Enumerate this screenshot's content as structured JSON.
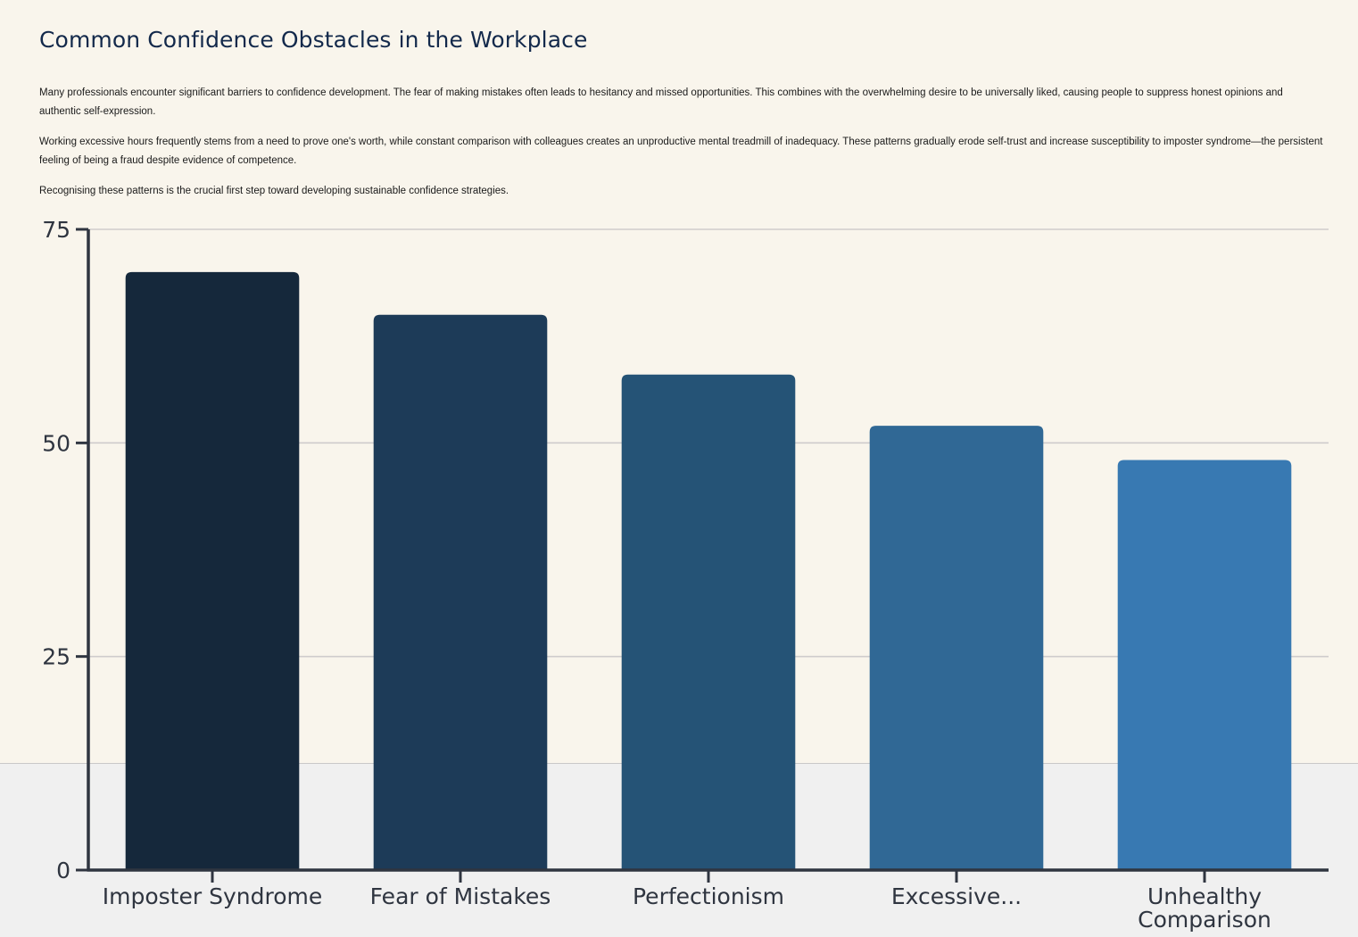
{
  "page": {
    "title": "Common Confidence Obstacles in the Workplace",
    "paragraphs": [
      "Many professionals encounter significant barriers to confidence development. The fear of making mistakes often leads to hesitancy and missed opportunities. This combines with the overwhelming desire to be universally liked, causing people to suppress honest opinions and authentic self-expression.",
      "Working excessive hours frequently stems from a need to prove one's worth, while constant comparison with colleagues creates an unproductive mental treadmill of inadequacy. These patterns gradually erode self-trust and increase susceptibility to imposter syndrome—the persistent feeling of being a fraud despite evidence of competence.",
      "Recognising these patterns is the crucial first step toward developing sustainable confidence strategies."
    ]
  },
  "chart_data": {
    "type": "bar",
    "categories": [
      "Imposter Syndrome",
      "Fear of Mistakes",
      "Perfectionism",
      "Excessive...",
      "Unhealthy Comparison"
    ],
    "category_lines": [
      [
        "Imposter Syndrome"
      ],
      [
        "Fear of Mistakes"
      ],
      [
        "Perfectionism"
      ],
      [
        "Excessive..."
      ],
      [
        "Unhealthy",
        "Comparison"
      ]
    ],
    "values": [
      70,
      65,
      58,
      52,
      48
    ],
    "colors": [
      "#15283b",
      "#1d3b58",
      "#255376",
      "#306895",
      "#3879b2"
    ],
    "ylim": [
      0,
      75
    ],
    "yticks": [
      0,
      25,
      50,
      75
    ],
    "grid": true,
    "title": "",
    "xlabel": "",
    "ylabel": ""
  }
}
